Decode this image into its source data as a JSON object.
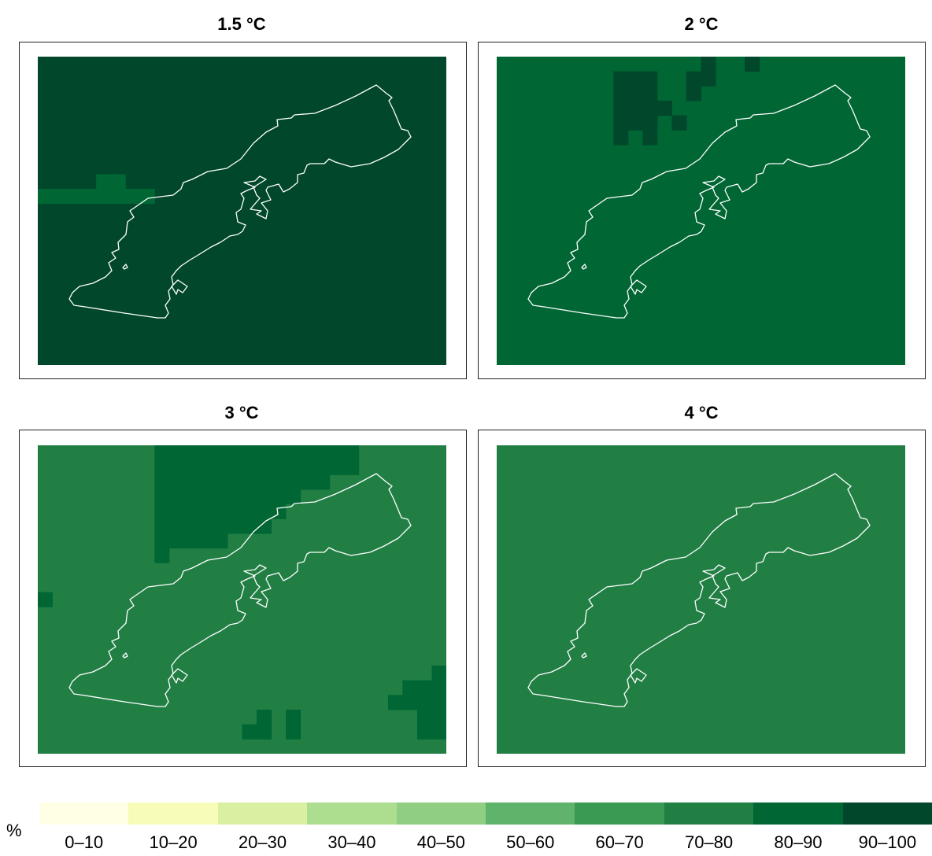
{
  "palette": [
    "#ffffe5",
    "#f7fcb9",
    "#d9f0a3",
    "#addd8e",
    "#8fce83",
    "#5fb36b",
    "#3a9a53",
    "#217f44",
    "#006634",
    "#00472b"
  ],
  "panels": [
    {
      "title": "1.5 °C",
      "background_class": 9,
      "blocks": [
        {
          "class": 8,
          "cells": [
            [
              0,
              9,
              4,
              1
            ],
            [
              4,
              8,
              2,
              2
            ],
            [
              6,
              9,
              2,
              1
            ]
          ]
        }
      ]
    },
    {
      "title": "2 °C",
      "background_class": 8,
      "blocks": [
        {
          "class": 9,
          "cells": [
            [
              14,
              0,
              1,
              2
            ],
            [
              13,
              1,
              1,
              2
            ],
            [
              8,
              1,
              3,
              4
            ],
            [
              11,
              3,
              1,
              1
            ],
            [
              10,
              4,
              1,
              2
            ],
            [
              12,
              4,
              1,
              1
            ],
            [
              8,
              5,
              1,
              1
            ],
            [
              17,
              0,
              1,
              1
            ]
          ]
        }
      ]
    },
    {
      "title": "3 °C",
      "background_class": 7,
      "blocks": [
        {
          "class": 8,
          "cells": [
            [
              8,
              0,
              14,
              2
            ],
            [
              8,
              2,
              12,
              1
            ],
            [
              8,
              3,
              10,
              1
            ],
            [
              8,
              4,
              9,
              1
            ],
            [
              8,
              5,
              8,
              1
            ],
            [
              8,
              6,
              5,
              1
            ],
            [
              8,
              7,
              1,
              1
            ],
            [
              0,
              10,
              1,
              1
            ],
            [
              27,
              15,
              1,
              2
            ],
            [
              25,
              16,
              3,
              1
            ],
            [
              24,
              17,
              4,
              1
            ],
            [
              26,
              18,
              2,
              2
            ],
            [
              15,
              18,
              1,
              1
            ],
            [
              14,
              19,
              2,
              1
            ],
            [
              17,
              18,
              1,
              2
            ],
            [
              15,
              19,
              0,
              0
            ]
          ]
        },
        {
          "class": 7,
          "cells": [
            [
              13,
              7,
              1,
              1
            ],
            [
              15,
              7,
              1,
              1
            ]
          ]
        }
      ]
    },
    {
      "title": "4 °C",
      "background_class": 7,
      "blocks": []
    }
  ],
  "legend": {
    "unit": "%",
    "labels": [
      "0–10",
      "10–20",
      "20–30",
      "30–40",
      "40–50",
      "50–60",
      "60–70",
      "70–80",
      "80–90",
      "90–100"
    ]
  }
}
